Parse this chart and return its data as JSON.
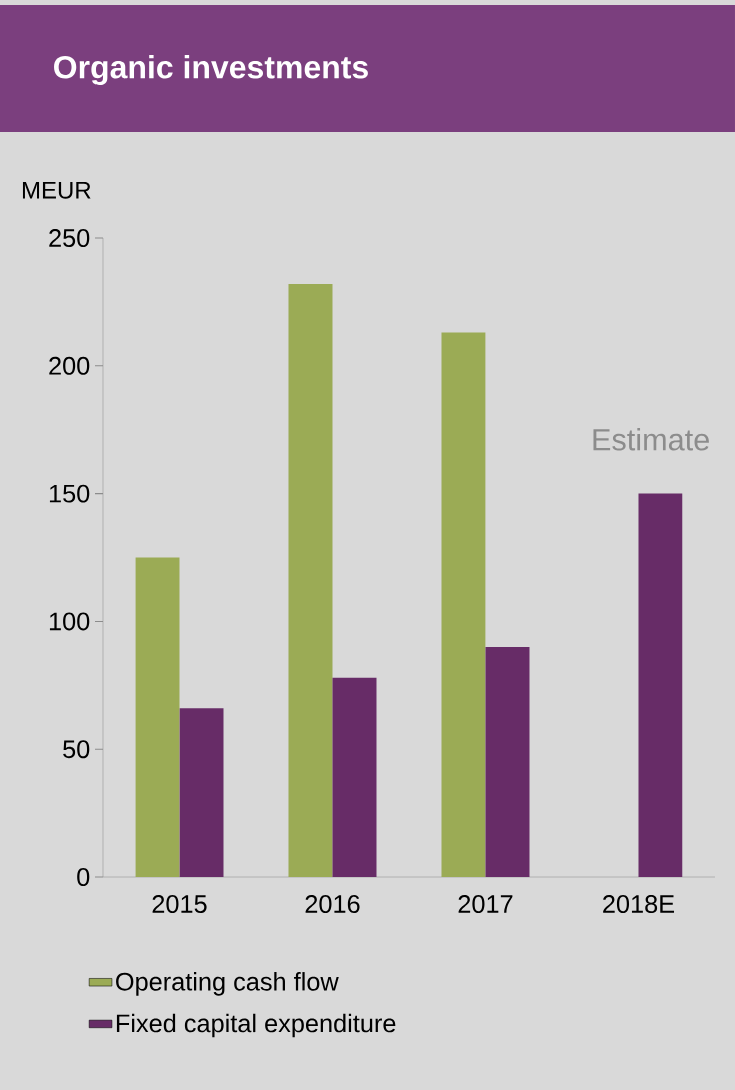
{
  "chart_data": {
    "type": "bar",
    "title": "Organic investments",
    "ylabel": "MEUR",
    "categories": [
      "2015",
      "2016",
      "2017",
      "2018E"
    ],
    "series": [
      {
        "name": "Operating cash flow",
        "color": "#9bab55",
        "values": [
          125,
          232,
          213,
          null
        ]
      },
      {
        "name": "Fixed capital expenditure",
        "color": "#672c67",
        "values": [
          66,
          78,
          90,
          150
        ]
      }
    ],
    "ylim": [
      0,
      250
    ],
    "yticks": [
      0,
      50,
      100,
      150,
      200,
      250
    ],
    "legend": "bottom",
    "annotations": [
      "Estimate"
    ]
  }
}
